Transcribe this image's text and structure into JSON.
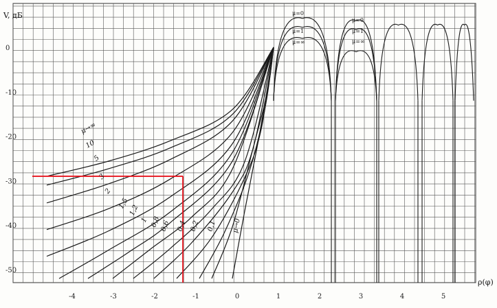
{
  "chart_data": {
    "type": "line",
    "title": "",
    "ylabel": "V, дБ",
    "xlabel": "ρ(φ)",
    "xlim": [
      -4.5,
      5.8
    ],
    "ylim": [
      -52,
      8
    ],
    "xticks": [
      "-4",
      "-3",
      "-2",
      "-1",
      "0",
      "1",
      "2",
      "3",
      "4",
      "5"
    ],
    "yticks": [
      "0",
      "-10",
      "-20",
      "-30",
      "-40",
      "-50"
    ],
    "grid": true,
    "highlight": {
      "x": -1.2,
      "y": -29,
      "color": "#e8141e"
    },
    "series": [
      {
        "name": "μ → ∞",
        "label": "μ→∞",
        "x": [
          -4.5,
          -3,
          -1.5,
          0,
          1
        ],
        "y": [
          -29,
          -25.6,
          -21,
          -14,
          0
        ]
      },
      {
        "name": "10",
        "label": "10",
        "x": [
          -4.5,
          -3,
          -1.5,
          0,
          1
        ],
        "y": [
          -31,
          -27.3,
          -22.6,
          -15.1,
          0
        ]
      },
      {
        "name": "5",
        "label": "5",
        "x": [
          -4.5,
          -3,
          -1.5,
          0,
          1
        ],
        "y": [
          -35,
          -30.7,
          -25.2,
          -16.6,
          0
        ]
      },
      {
        "name": "3",
        "label": "3",
        "x": [
          -4.5,
          -3,
          -1.5,
          0,
          1
        ],
        "y": [
          -41,
          -36.3,
          -29.6,
          -19.2,
          0
        ]
      },
      {
        "name": "2",
        "label": "2",
        "x": [
          -4.5,
          -3,
          -1.5,
          0,
          1
        ],
        "y": [
          -47,
          -41.3,
          -33.6,
          -21.7,
          0
        ]
      },
      {
        "name": "1.5",
        "label": "1,5",
        "x": [
          -4.2,
          -3,
          -1.5,
          0,
          1
        ],
        "y": [
          -52,
          -45.6,
          -37,
          -23.7,
          0
        ]
      },
      {
        "name": "1.2",
        "label": "1,2",
        "x": [
          -3.5,
          -2.5,
          -1.5,
          0,
          1
        ],
        "y": [
          -52,
          -46,
          -39.4,
          -25.6,
          0
        ]
      },
      {
        "name": "1",
        "label": "1",
        "x": [
          -2.9,
          -2,
          -1,
          0,
          1
        ],
        "y": [
          -52,
          -45.5,
          -38.3,
          -27.4,
          0
        ]
      },
      {
        "name": "0.8",
        "label": "0,8",
        "x": [
          -2.4,
          -1.5,
          -0.5,
          0.3,
          1
        ],
        "y": [
          -52,
          -45.2,
          -36.4,
          -25.7,
          0
        ]
      },
      {
        "name": "0.6",
        "label": "0,6",
        "x": [
          -1.9,
          -1,
          0,
          0.5,
          1
        ],
        "y": [
          -52,
          -44.1,
          -32.6,
          -22.8,
          0
        ]
      },
      {
        "name": "0.4",
        "label": "0,4",
        "x": [
          -1.35,
          -0.5,
          0.3,
          0.7,
          1
        ],
        "y": [
          -52,
          -42.8,
          -29.3,
          -18.4,
          0
        ]
      },
      {
        "name": "0.2",
        "label": "0,2",
        "x": [
          -0.8,
          -0.2,
          0.4,
          0.8,
          1
        ],
        "y": [
          -52,
          -41.8,
          -28.2,
          -13.3,
          0
        ]
      },
      {
        "name": "0.1",
        "label": "0,1",
        "x": [
          -0.5,
          0,
          0.5,
          0.85,
          1
        ],
        "y": [
          -52,
          -40.4,
          -22.8,
          -10,
          0
        ]
      },
      {
        "name": "μ → 0",
        "label": "μ→0",
        "x": [
          0,
          0.3,
          0.6,
          0.85,
          1
        ],
        "y": [
          -52,
          -36.8,
          -22.5,
          -9.2,
          0
        ]
      }
    ],
    "sidelobes": [
      {
        "name": "μ = 0",
        "label": "μ=0"
      },
      {
        "name": "μ = 1",
        "label": "μ=1"
      },
      {
        "name": "μ = ∞",
        "label": "μ=∞"
      }
    ]
  }
}
